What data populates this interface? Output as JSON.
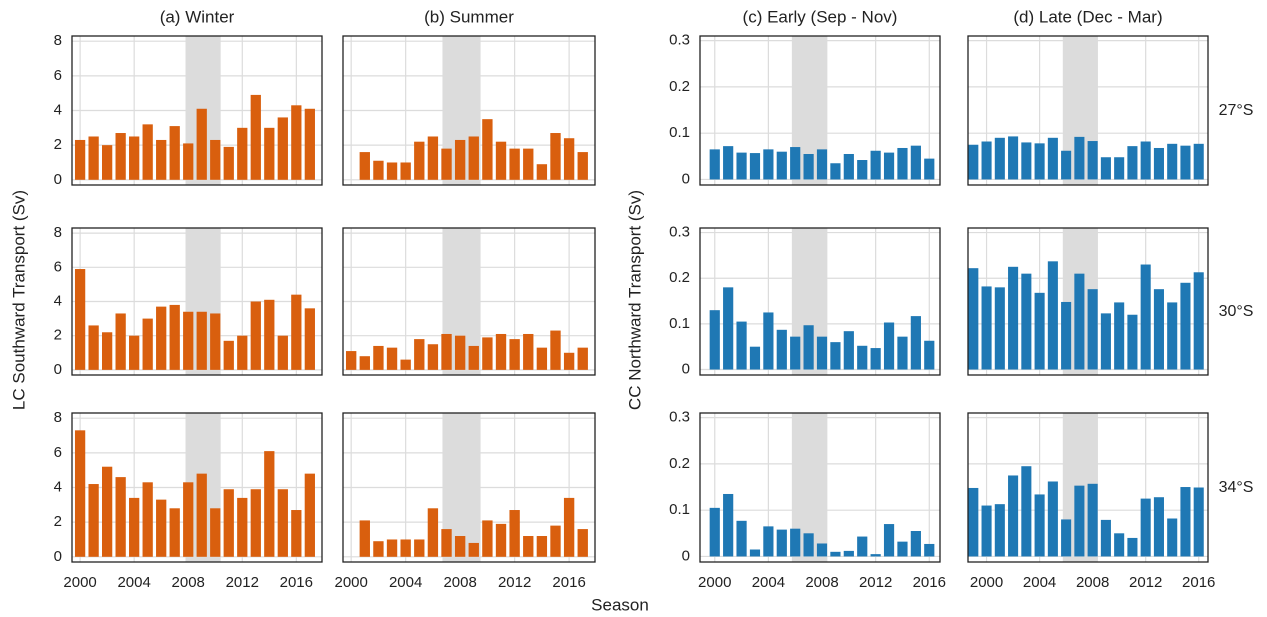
{
  "figure": {
    "ylabel_left": "LC Southward Transport (Sv)",
    "ylabel_right": "CC Northward Transport (Sv)",
    "xlabel": "Season",
    "row_labels": [
      "27°S",
      "30°S",
      "34°S"
    ]
  },
  "chart_data": [
    {
      "type": "bar",
      "title": "(a) Winter",
      "x": [
        2000,
        2001,
        2002,
        2003,
        2004,
        2005,
        2006,
        2007,
        2008,
        2009,
        2010,
        2011,
        2012,
        2013,
        2014,
        2015,
        2016,
        2017
      ],
      "values": [
        2.3,
        2.5,
        2.0,
        2.7,
        2.5,
        3.2,
        2.3,
        3.1,
        2.1,
        4.1,
        2.3,
        1.9,
        3.0,
        4.9,
        3.0,
        3.6,
        4.3,
        4.1
      ],
      "color": "#d95f0e",
      "xlim": [
        1999.4,
        2017.9
      ],
      "ylim": [
        -0.3,
        8.3
      ],
      "xticks": [
        2000,
        2004,
        2008,
        2012,
        2016
      ],
      "yticks": [
        0,
        2,
        4,
        6,
        8
      ],
      "highlight_x": [
        2007.8,
        2010.4
      ],
      "grid": true,
      "xtick_labels": false,
      "ytick_labels": true
    },
    {
      "type": "bar",
      "title": "(b) Summer",
      "x": [
        2001,
        2002,
        2003,
        2004,
        2005,
        2006,
        2007,
        2008,
        2009,
        2010,
        2011,
        2012,
        2013,
        2014,
        2015,
        2016,
        2017
      ],
      "values": [
        1.6,
        1.1,
        1.0,
        1.0,
        2.2,
        2.5,
        1.8,
        2.3,
        2.5,
        3.5,
        2.2,
        1.8,
        1.8,
        0.9,
        2.7,
        2.4,
        1.6
      ],
      "color": "#d95f0e",
      "xlim": [
        1999.4,
        2017.9
      ],
      "ylim": [
        -0.3,
        8.3
      ],
      "xticks": [
        2000,
        2004,
        2008,
        2012,
        2016
      ],
      "yticks": [
        0,
        2,
        4,
        6,
        8
      ],
      "highlight_x": [
        2006.7,
        2009.5
      ],
      "grid": true,
      "xtick_labels": false,
      "ytick_labels": false
    },
    {
      "type": "bar",
      "title": "(c) Early (Sep - Nov)",
      "x": [
        2000,
        2001,
        2002,
        2003,
        2004,
        2005,
        2006,
        2007,
        2008,
        2009,
        2010,
        2011,
        2012,
        2013,
        2014,
        2015,
        2016
      ],
      "values": [
        0.065,
        0.072,
        0.058,
        0.057,
        0.065,
        0.06,
        0.07,
        0.055,
        0.065,
        0.035,
        0.055,
        0.042,
        0.062,
        0.058,
        0.068,
        0.073,
        0.045
      ],
      "color": "#1f78b4",
      "xlim": [
        1998.9,
        2016.8
      ],
      "ylim": [
        -0.012,
        0.31
      ],
      "xticks": [
        2000,
        2004,
        2008,
        2012,
        2016
      ],
      "yticks": [
        0,
        0.1,
        0.2,
        0.3
      ],
      "highlight_x": [
        2005.75,
        2008.4
      ],
      "grid": true,
      "xtick_labels": false,
      "ytick_labels": true
    },
    {
      "type": "bar",
      "title": "(d) Late (Dec - Mar)",
      "x": [
        1999,
        2000,
        2001,
        2002,
        2003,
        2004,
        2005,
        2006,
        2007,
        2008,
        2009,
        2010,
        2011,
        2012,
        2013,
        2014,
        2015,
        2016
      ],
      "values": [
        0.075,
        0.082,
        0.09,
        0.093,
        0.08,
        0.078,
        0.09,
        0.062,
        0.092,
        0.083,
        0.048,
        0.048,
        0.072,
        0.082,
        0.068,
        0.077,
        0.073,
        0.077
      ],
      "color": "#1f78b4",
      "xlim": [
        1998.6,
        2016.7
      ],
      "ylim": [
        -0.012,
        0.31
      ],
      "xticks": [
        2000,
        2004,
        2008,
        2012,
        2016
      ],
      "yticks": [
        0,
        0.1,
        0.2,
        0.3
      ],
      "highlight_x": [
        2005.75,
        2008.4
      ],
      "grid": true,
      "xtick_labels": false,
      "ytick_labels": false
    },
    {
      "type": "bar",
      "x": [
        2000,
        2001,
        2002,
        2003,
        2004,
        2005,
        2006,
        2007,
        2008,
        2009,
        2010,
        2011,
        2012,
        2013,
        2014,
        2015,
        2016,
        2017
      ],
      "values": [
        5.9,
        2.6,
        2.2,
        3.3,
        2.0,
        3.0,
        3.7,
        3.8,
        3.4,
        3.4,
        3.3,
        1.7,
        2.0,
        4.0,
        4.1,
        2.0,
        4.4,
        3.6
      ],
      "color": "#d95f0e",
      "xlim": [
        1999.4,
        2017.9
      ],
      "ylim": [
        -0.3,
        8.3
      ],
      "xticks": [
        2000,
        2004,
        2008,
        2012,
        2016
      ],
      "yticks": [
        0,
        2,
        4,
        6,
        8
      ],
      "highlight_x": [
        2007.8,
        2010.4
      ],
      "grid": true,
      "xtick_labels": false,
      "ytick_labels": true
    },
    {
      "type": "bar",
      "x": [
        2000,
        2001,
        2002,
        2003,
        2004,
        2005,
        2006,
        2007,
        2008,
        2009,
        2010,
        2011,
        2012,
        2013,
        2014,
        2015,
        2016,
        2017
      ],
      "values": [
        1.1,
        0.8,
        1.4,
        1.3,
        0.6,
        1.8,
        1.5,
        2.1,
        2.0,
        1.4,
        1.9,
        2.1,
        1.8,
        2.1,
        1.3,
        2.3,
        1.0,
        1.3
      ],
      "color": "#d95f0e",
      "xlim": [
        1999.4,
        2017.9
      ],
      "ylim": [
        -0.3,
        8.3
      ],
      "xticks": [
        2000,
        2004,
        2008,
        2012,
        2016
      ],
      "yticks": [
        0,
        2,
        4,
        6,
        8
      ],
      "highlight_x": [
        2006.7,
        2009.5
      ],
      "grid": true,
      "xtick_labels": false,
      "ytick_labels": false
    },
    {
      "type": "bar",
      "x": [
        2000,
        2001,
        2002,
        2003,
        2004,
        2005,
        2006,
        2007,
        2008,
        2009,
        2010,
        2011,
        2012,
        2013,
        2014,
        2015,
        2016
      ],
      "values": [
        0.13,
        0.18,
        0.105,
        0.05,
        0.125,
        0.087,
        0.072,
        0.097,
        0.072,
        0.06,
        0.084,
        0.052,
        0.047,
        0.103,
        0.072,
        0.117,
        0.063
      ],
      "color": "#1f78b4",
      "xlim": [
        1998.9,
        2016.8
      ],
      "ylim": [
        -0.012,
        0.31
      ],
      "xticks": [
        2000,
        2004,
        2008,
        2012,
        2016
      ],
      "yticks": [
        0,
        0.1,
        0.2,
        0.3
      ],
      "highlight_x": [
        2005.75,
        2008.4
      ],
      "grid": true,
      "xtick_labels": false,
      "ytick_labels": true
    },
    {
      "type": "bar",
      "x": [
        1999,
        2000,
        2001,
        2002,
        2003,
        2004,
        2005,
        2006,
        2007,
        2008,
        2009,
        2010,
        2011,
        2012,
        2013,
        2014,
        2015,
        2016
      ],
      "values": [
        0.222,
        0.182,
        0.18,
        0.225,
        0.21,
        0.168,
        0.237,
        0.148,
        0.21,
        0.176,
        0.123,
        0.147,
        0.12,
        0.23,
        0.176,
        0.147,
        0.19,
        0.213
      ],
      "color": "#1f78b4",
      "xlim": [
        1998.6,
        2016.7
      ],
      "ylim": [
        -0.012,
        0.31
      ],
      "xticks": [
        2000,
        2004,
        2008,
        2012,
        2016
      ],
      "yticks": [
        0,
        0.1,
        0.2,
        0.3
      ],
      "highlight_x": [
        2005.75,
        2008.4
      ],
      "grid": true,
      "xtick_labels": false,
      "ytick_labels": false
    },
    {
      "type": "bar",
      "x": [
        2000,
        2001,
        2002,
        2003,
        2004,
        2005,
        2006,
        2007,
        2008,
        2009,
        2010,
        2011,
        2012,
        2013,
        2014,
        2015,
        2016,
        2017
      ],
      "values": [
        7.3,
        4.2,
        5.2,
        4.6,
        3.4,
        4.3,
        3.3,
        2.8,
        4.3,
        4.8,
        2.8,
        3.9,
        3.4,
        3.9,
        6.1,
        3.9,
        2.7,
        4.8
      ],
      "color": "#d95f0e",
      "xlim": [
        1999.4,
        2017.9
      ],
      "ylim": [
        -0.3,
        8.3
      ],
      "xticks": [
        2000,
        2004,
        2008,
        2012,
        2016
      ],
      "yticks": [
        0,
        2,
        4,
        6,
        8
      ],
      "highlight_x": [
        2007.8,
        2010.4
      ],
      "grid": true,
      "xtick_labels": true,
      "ytick_labels": true
    },
    {
      "type": "bar",
      "x": [
        2001,
        2002,
        2003,
        2004,
        2005,
        2006,
        2007,
        2008,
        2009,
        2010,
        2011,
        2012,
        2013,
        2014,
        2015,
        2016,
        2017
      ],
      "values": [
        2.1,
        0.9,
        1.0,
        1.0,
        1.0,
        2.8,
        1.6,
        1.2,
        0.8,
        2.1,
        1.9,
        2.7,
        1.2,
        1.2,
        1.8,
        3.4,
        1.6
      ],
      "color": "#d95f0e",
      "xlim": [
        1999.4,
        2017.9
      ],
      "ylim": [
        -0.3,
        8.3
      ],
      "xticks": [
        2000,
        2004,
        2008,
        2012,
        2016
      ],
      "yticks": [
        0,
        2,
        4,
        6,
        8
      ],
      "highlight_x": [
        2006.7,
        2009.5
      ],
      "grid": true,
      "xtick_labels": true,
      "ytick_labels": false
    },
    {
      "type": "bar",
      "x": [
        2000,
        2001,
        2002,
        2003,
        2004,
        2005,
        2006,
        2007,
        2008,
        2009,
        2010,
        2011,
        2012,
        2013,
        2014,
        2015,
        2016
      ],
      "values": [
        0.105,
        0.135,
        0.077,
        0.015,
        0.065,
        0.058,
        0.06,
        0.05,
        0.028,
        0.01,
        0.012,
        0.043,
        0.005,
        0.07,
        0.032,
        0.055,
        0.027
      ],
      "color": "#1f78b4",
      "xlim": [
        1998.9,
        2016.8
      ],
      "ylim": [
        -0.012,
        0.31
      ],
      "xticks": [
        2000,
        2004,
        2008,
        2012,
        2016
      ],
      "yticks": [
        0,
        0.1,
        0.2,
        0.3
      ],
      "highlight_x": [
        2005.75,
        2008.4
      ],
      "grid": true,
      "xtick_labels": true,
      "ytick_labels": true
    },
    {
      "type": "bar",
      "x": [
        1999,
        2000,
        2001,
        2002,
        2003,
        2004,
        2005,
        2006,
        2007,
        2008,
        2009,
        2010,
        2011,
        2012,
        2013,
        2014,
        2015,
        2016
      ],
      "values": [
        0.148,
        0.11,
        0.113,
        0.175,
        0.195,
        0.134,
        0.162,
        0.08,
        0.153,
        0.157,
        0.079,
        0.05,
        0.04,
        0.125,
        0.128,
        0.082,
        0.15,
        0.149
      ],
      "color": "#1f78b4",
      "xlim": [
        1998.6,
        2016.7
      ],
      "ylim": [
        -0.012,
        0.31
      ],
      "xticks": [
        2000,
        2004,
        2008,
        2012,
        2016
      ],
      "yticks": [
        0,
        0.1,
        0.2,
        0.3
      ],
      "highlight_x": [
        2005.75,
        2008.4
      ],
      "grid": true,
      "xtick_labels": true,
      "ytick_labels": false
    }
  ]
}
